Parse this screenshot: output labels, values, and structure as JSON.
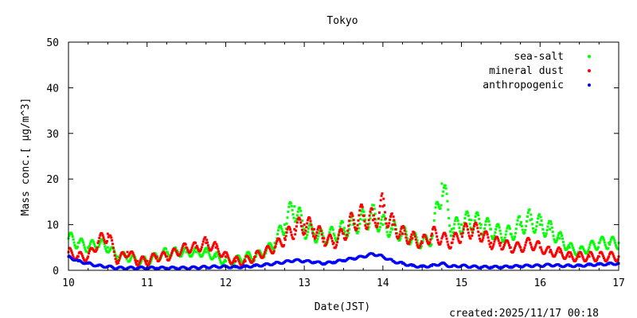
{
  "chart_data": {
    "type": "scatter",
    "title": "Tokyo",
    "xlabel": "Date(JST)",
    "ylabel": "Mass conc.[ μg/m^3]",
    "xlim": [
      10,
      17
    ],
    "ylim": [
      0,
      50
    ],
    "x_ticks": [
      "10",
      "11",
      "12",
      "13",
      "14",
      "15",
      "16",
      "17"
    ],
    "y_ticks": [
      "0",
      "10",
      "20",
      "30",
      "40",
      "50"
    ],
    "legend_position": "top-right",
    "x_start": 10,
    "x_step": 0.125,
    "series": [
      {
        "name": "sea-salt",
        "color": "#00ff00",
        "values": [
          7,
          6,
          5,
          6,
          5,
          3,
          3,
          2,
          2,
          3,
          4,
          4,
          4,
          4,
          4,
          3,
          2,
          2,
          3,
          3,
          4,
          6,
          10,
          14,
          9,
          8,
          7,
          8,
          9,
          10,
          11,
          12,
          10,
          9,
          8,
          7,
          6,
          7,
          19,
          9,
          10,
          11,
          10,
          9,
          8,
          8,
          10,
          11,
          10,
          9,
          7,
          5,
          4,
          5,
          6,
          6,
          6
        ]
      },
      {
        "name": "mineral dust",
        "color": "#ff0000",
        "values": [
          4,
          3,
          3,
          6,
          8,
          2,
          4,
          2,
          2,
          3,
          3,
          4,
          5,
          5,
          6,
          5,
          3,
          2,
          2,
          3,
          4,
          5,
          7,
          9,
          10,
          9,
          7,
          6,
          8,
          11,
          12,
          11,
          14,
          10,
          8,
          7,
          6,
          8,
          7,
          6,
          8,
          9,
          8,
          6,
          6,
          5,
          5,
          6,
          5,
          4,
          4,
          3,
          3,
          3,
          3,
          3,
          3
        ]
      },
      {
        "name": "anthropogenic",
        "color": "#0000ff",
        "values": [
          3,
          2,
          1.5,
          1,
          0.8,
          0.5,
          0.5,
          0.5,
          0.5,
          0.5,
          0.5,
          0.5,
          0.5,
          0.6,
          0.7,
          0.8,
          0.8,
          0.7,
          0.8,
          1,
          1.2,
          1.5,
          1.8,
          2.2,
          2,
          1.8,
          1.5,
          1.8,
          2.2,
          2.6,
          3,
          3.6,
          3,
          2,
          1.5,
          1,
          0.8,
          1,
          1.5,
          0.8,
          1,
          0.8,
          0.7,
          0.7,
          0.7,
          0.8,
          0.9,
          1,
          1,
          1.2,
          1,
          1,
          1,
          1.2,
          1.3,
          1.4,
          1.5
        ]
      }
    ]
  },
  "footer": {
    "created": "created:2025/11/17 00:18"
  }
}
